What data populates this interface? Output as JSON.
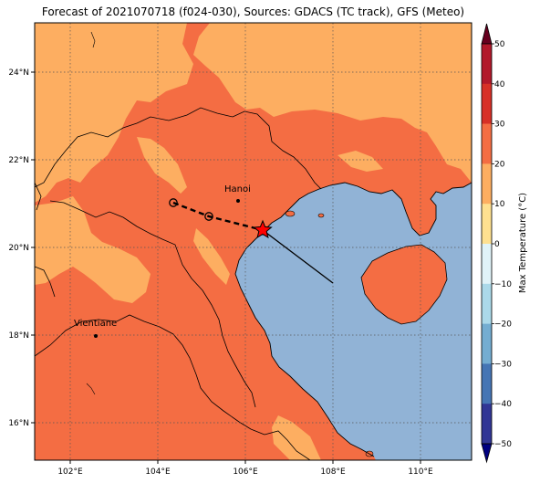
{
  "title": "Forecast of 2021070718 (f024-030), Sources: GDACS (TC track), GFS (Meteo)",
  "colors": {
    "sea": "#91b3d6",
    "hot_30": "#f46d43",
    "warm_20": "#fdae61",
    "grid": "#555555"
  },
  "axes": {
    "lat_labels": [
      "24°N",
      "22°N",
      "20°N",
      "18°N",
      "16°N"
    ],
    "lon_labels": [
      "102°E",
      "104°E",
      "106°E",
      "108°E",
      "110°E"
    ]
  },
  "cities": [
    {
      "name": "Hanoi"
    },
    {
      "name": "Vientiane"
    }
  ],
  "track": {
    "current_icon": "star-icon",
    "past_icon": "circle-marker-icon",
    "forecast_style": "solid line",
    "past_style": "dashed line"
  },
  "colorbar": {
    "label": "Max Temperature (°C)",
    "ticks": [
      "50",
      "40",
      "30",
      "20",
      "10",
      "0",
      "−10",
      "−20",
      "−30",
      "−40",
      "−50"
    ],
    "colors": [
      "#67001f",
      "#b2182b",
      "#d73027",
      "#f46d43",
      "#fdae61",
      "#fee090",
      "#e0f3f8",
      "#abd9e9",
      "#74add1",
      "#4575b4",
      "#313695",
      "#1a1a7a"
    ]
  }
}
